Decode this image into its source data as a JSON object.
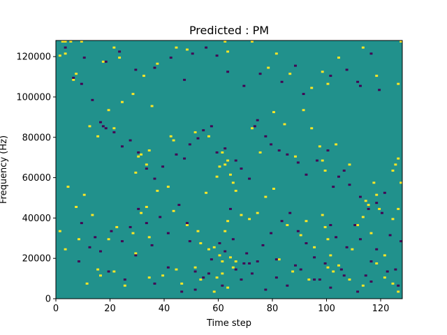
{
  "chart_data": {
    "type": "heatmap",
    "title": "Predicted : PM",
    "xlabel": "Time step",
    "ylabel": "Frequency (Hz)",
    "xlim": [
      0,
      128
    ],
    "ylim": [
      0,
      128000
    ],
    "x_ticks": [
      0,
      20,
      40,
      60,
      80,
      100,
      120
    ],
    "y_ticks": [
      0,
      20000,
      40000,
      60000,
      80000,
      100000,
      120000
    ],
    "n_time_steps": 128,
    "n_freq_bins": 128,
    "bin_hz": 1000,
    "background_value": 0,
    "colors": {
      "background": "#21918c",
      "positive": "#fde725",
      "negative": "#440154"
    },
    "grid": false,
    "positive_cells": [
      [
        2,
        127
      ],
      [
        3,
        127
      ],
      [
        5,
        127
      ],
      [
        9,
        127
      ],
      [
        62,
        127
      ],
      [
        72,
        127
      ],
      [
        127,
        127
      ],
      [
        1,
        120
      ],
      [
        3,
        121
      ],
      [
        6,
        108
      ],
      [
        7,
        111
      ],
      [
        17,
        117
      ],
      [
        21,
        124
      ],
      [
        23,
        119
      ],
      [
        24,
        97
      ],
      [
        28,
        101
      ],
      [
        32,
        110
      ],
      [
        35,
        95
      ],
      [
        37,
        116
      ],
      [
        44,
        124
      ],
      [
        48,
        123
      ],
      [
        63,
        122
      ],
      [
        78,
        114
      ],
      [
        81,
        121
      ],
      [
        86,
        111
      ],
      [
        94,
        104
      ],
      [
        98,
        112
      ],
      [
        100,
        106
      ],
      [
        104,
        119
      ],
      [
        113,
        124
      ],
      [
        118,
        110
      ],
      [
        126,
        106
      ],
      [
        12,
        85
      ],
      [
        15,
        80
      ],
      [
        19,
        93
      ],
      [
        21,
        84
      ],
      [
        29,
        62
      ],
      [
        30,
        70
      ],
      [
        31,
        71
      ],
      [
        33,
        66
      ],
      [
        34,
        73
      ],
      [
        42,
        80
      ],
      [
        43,
        78
      ],
      [
        51,
        82
      ],
      [
        56,
        80
      ],
      [
        59,
        60
      ],
      [
        60,
        65
      ],
      [
        61,
        72
      ],
      [
        62,
        66
      ],
      [
        63,
        68
      ],
      [
        64,
        61
      ],
      [
        65,
        57
      ],
      [
        66,
        53
      ],
      [
        72,
        84
      ],
      [
        75,
        72
      ],
      [
        80,
        92
      ],
      [
        84,
        86
      ],
      [
        88,
        70
      ],
      [
        91,
        93
      ],
      [
        94,
        84
      ],
      [
        97,
        75
      ],
      [
        98,
        68
      ],
      [
        99,
        63
      ],
      [
        103,
        76
      ],
      [
        108,
        66
      ],
      [
        114,
        48
      ],
      [
        115,
        46
      ],
      [
        117,
        57
      ],
      [
        118,
        51
      ],
      [
        124,
        63
      ],
      [
        125,
        66
      ],
      [
        126,
        69
      ],
      [
        127,
        57
      ],
      [
        4,
        55
      ],
      [
        7,
        45
      ],
      [
        10,
        51
      ],
      [
        13,
        41
      ],
      [
        19,
        29
      ],
      [
        22,
        35
      ],
      [
        28,
        32
      ],
      [
        31,
        42
      ],
      [
        33,
        45
      ],
      [
        34,
        30
      ],
      [
        37,
        53
      ],
      [
        41,
        55
      ],
      [
        43,
        43
      ],
      [
        48,
        36
      ],
      [
        52,
        33
      ],
      [
        53,
        27
      ],
      [
        55,
        52
      ],
      [
        56,
        24
      ],
      [
        58,
        25
      ],
      [
        60,
        21
      ],
      [
        61,
        18
      ],
      [
        62,
        33
      ],
      [
        63,
        38
      ],
      [
        64,
        20
      ],
      [
        65,
        15
      ],
      [
        68,
        41
      ],
      [
        71,
        39
      ],
      [
        74,
        42
      ],
      [
        77,
        50
      ],
      [
        80,
        54
      ],
      [
        82,
        19
      ],
      [
        85,
        36
      ],
      [
        90,
        31
      ],
      [
        92,
        38
      ],
      [
        95,
        25
      ],
      [
        98,
        41
      ],
      [
        99,
        35
      ],
      [
        100,
        29
      ],
      [
        101,
        21
      ],
      [
        104,
        16
      ],
      [
        109,
        24
      ],
      [
        111,
        36
      ],
      [
        113,
        40
      ],
      [
        116,
        32
      ],
      [
        119,
        44
      ],
      [
        121,
        21
      ],
      [
        124,
        39
      ],
      [
        126,
        44
      ],
      [
        1,
        33
      ],
      [
        3,
        24
      ],
      [
        8,
        29
      ],
      [
        11,
        7
      ],
      [
        15,
        14
      ],
      [
        16,
        11
      ],
      [
        21,
        13
      ],
      [
        25,
        6
      ],
      [
        29,
        22
      ],
      [
        34,
        10
      ],
      [
        39,
        11
      ],
      [
        44,
        14
      ],
      [
        46,
        7
      ],
      [
        51,
        15
      ],
      [
        53,
        9
      ],
      [
        58,
        3
      ],
      [
        59,
        10
      ],
      [
        61,
        12
      ],
      [
        63,
        5
      ],
      [
        66,
        18
      ],
      [
        87,
        13
      ],
      [
        93,
        9
      ],
      [
        100,
        15
      ],
      [
        102,
        13
      ],
      [
        108,
        9
      ],
      [
        113,
        6
      ],
      [
        118,
        17
      ],
      [
        121,
        10
      ],
      [
        124,
        7
      ],
      [
        126,
        3
      ]
    ],
    "negative_cells": [
      [
        3,
        124
      ],
      [
        10,
        119
      ],
      [
        18,
        117
      ],
      [
        23,
        122
      ],
      [
        29,
        113
      ],
      [
        36,
        114
      ],
      [
        42,
        119
      ],
      [
        47,
        108
      ],
      [
        50,
        121
      ],
      [
        55,
        124
      ],
      [
        59,
        120
      ],
      [
        63,
        112
      ],
      [
        69,
        105
      ],
      [
        75,
        111
      ],
      [
        83,
        107
      ],
      [
        88,
        115
      ],
      [
        91,
        101
      ],
      [
        101,
        110
      ],
      [
        107,
        113
      ],
      [
        111,
        107
      ],
      [
        112,
        105
      ],
      [
        116,
        121
      ],
      [
        119,
        103
      ],
      [
        6,
        109
      ],
      [
        9,
        106
      ],
      [
        13,
        98
      ],
      [
        16,
        87
      ],
      [
        17,
        85
      ],
      [
        18,
        84
      ],
      [
        21,
        82
      ],
      [
        24,
        75
      ],
      [
        27,
        78
      ],
      [
        30,
        72
      ],
      [
        33,
        64
      ],
      [
        36,
        59
      ],
      [
        39,
        65
      ],
      [
        44,
        71
      ],
      [
        47,
        69
      ],
      [
        49,
        76
      ],
      [
        52,
        79
      ],
      [
        54,
        83
      ],
      [
        57,
        85
      ],
      [
        59,
        72
      ],
      [
        62,
        74
      ],
      [
        66,
        68
      ],
      [
        68,
        64
      ],
      [
        71,
        59
      ],
      [
        73,
        85
      ],
      [
        74,
        88
      ],
      [
        77,
        80
      ],
      [
        79,
        76
      ],
      [
        82,
        73
      ],
      [
        85,
        71
      ],
      [
        89,
        67
      ],
      [
        92,
        61
      ],
      [
        96,
        68
      ],
      [
        100,
        73
      ],
      [
        102,
        55
      ],
      [
        104,
        60
      ],
      [
        106,
        63
      ],
      [
        108,
        56
      ],
      [
        112,
        50
      ],
      [
        115,
        44
      ],
      [
        118,
        47
      ],
      [
        121,
        52
      ],
      [
        9,
        37
      ],
      [
        14,
        30
      ],
      [
        16,
        23
      ],
      [
        20,
        33
      ],
      [
        24,
        28
      ],
      [
        27,
        35
      ],
      [
        30,
        44
      ],
      [
        33,
        37
      ],
      [
        35,
        26
      ],
      [
        38,
        40
      ],
      [
        41,
        32
      ],
      [
        45,
        46
      ],
      [
        48,
        37
      ],
      [
        49,
        28
      ],
      [
        51,
        13
      ],
      [
        54,
        10
      ],
      [
        57,
        19
      ],
      [
        60,
        27
      ],
      [
        62,
        23
      ],
      [
        64,
        44
      ],
      [
        65,
        29
      ],
      [
        68,
        9
      ],
      [
        69,
        17
      ],
      [
        70,
        22
      ],
      [
        72,
        12
      ],
      [
        74,
        18
      ],
      [
        76,
        26
      ],
      [
        79,
        32
      ],
      [
        81,
        19
      ],
      [
        83,
        38
      ],
      [
        86,
        42
      ],
      [
        88,
        16
      ],
      [
        89,
        33
      ],
      [
        92,
        27
      ],
      [
        95,
        20
      ],
      [
        97,
        9
      ],
      [
        99,
        17
      ],
      [
        101,
        36
      ],
      [
        103,
        30
      ],
      [
        105,
        14
      ],
      [
        107,
        25
      ],
      [
        110,
        36
      ],
      [
        112,
        29
      ],
      [
        114,
        11
      ],
      [
        116,
        18
      ],
      [
        118,
        24
      ],
      [
        120,
        42
      ],
      [
        123,
        31
      ],
      [
        125,
        14
      ],
      [
        127,
        28
      ],
      [
        8,
        18
      ],
      [
        12,
        25
      ],
      [
        19,
        13
      ],
      [
        25,
        9
      ],
      [
        29,
        21
      ],
      [
        36,
        7
      ],
      [
        41,
        15
      ],
      [
        46,
        3
      ],
      [
        51,
        4
      ],
      [
        56,
        12
      ],
      [
        61,
        6
      ],
      [
        66,
        14
      ],
      [
        71,
        17
      ],
      [
        77,
        4
      ],
      [
        81,
        10
      ],
      [
        85,
        6
      ],
      [
        90,
        14
      ],
      [
        95,
        9
      ],
      [
        101,
        5
      ],
      [
        106,
        11
      ],
      [
        111,
        3
      ],
      [
        116,
        8
      ],
      [
        122,
        13
      ],
      [
        126,
        6
      ]
    ]
  }
}
